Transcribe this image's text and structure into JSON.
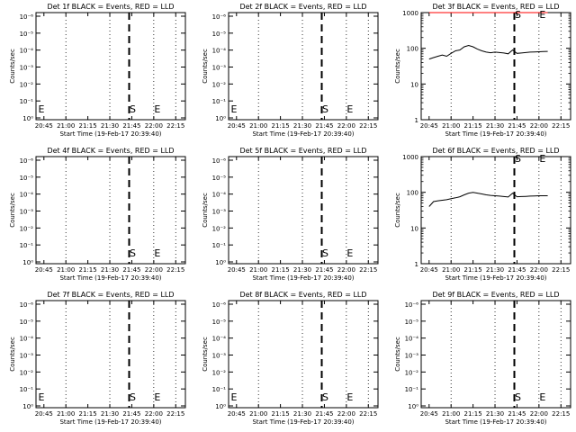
{
  "chart_data": [
    {
      "type": "line",
      "title": "Det 1f BLACK = Events, RED = LLD",
      "xlabel": "Start Time (19-Feb-17 20:39:40)",
      "ylabel": "Counts/sec",
      "x_ticks": [
        "20:45",
        "21:00",
        "21:15",
        "21:30",
        "21:45",
        "22:00",
        "22:15"
      ],
      "y_ticks": [
        "10⁰",
        "10⁻¹",
        "10⁻²",
        "10⁻³",
        "10⁻⁴",
        "10⁻⁵",
        "10⁻⁶"
      ],
      "markers": [
        {
          "label": "E"
        },
        {
          "label": "S"
        },
        {
          "label": "E"
        }
      ],
      "series": []
    },
    {
      "type": "line",
      "title": "Det 2f BLACK = Events, RED = LLD",
      "xlabel": "Start Time (19-Feb-17 20:39:40)",
      "ylabel": "Counts/sec",
      "x_ticks": [
        "20:45",
        "21:00",
        "21:15",
        "21:30",
        "21:45",
        "22:00",
        "22:15"
      ],
      "y_ticks": [
        "10⁰",
        "10⁻¹",
        "10⁻²",
        "10⁻³",
        "10⁻⁴",
        "10⁻⁵",
        "10⁻⁶"
      ],
      "markers": [
        {
          "label": "E"
        },
        {
          "label": "S"
        },
        {
          "label": "E"
        }
      ],
      "series": []
    },
    {
      "type": "line",
      "title": "Det 3f BLACK = Events, RED = LLD",
      "xlabel": "Start Time (19-Feb-17 20:39:40)",
      "ylabel": "Counts/sec",
      "x_ticks": [
        "20:45",
        "21:00",
        "21:15",
        "21:30",
        "21:45",
        "22:00",
        "22:15"
      ],
      "y_ticks": [
        "1",
        "10",
        "100",
        "1000"
      ],
      "markers": [
        {
          "label": "S"
        },
        {
          "label": "E"
        }
      ],
      "series": [
        {
          "color": "#000000",
          "x": [
            20.75,
            20.8,
            20.85,
            20.9,
            20.95,
            21.0,
            21.05,
            21.1,
            21.15,
            21.2,
            21.25,
            21.3,
            21.35,
            21.4,
            21.45,
            21.5,
            21.55,
            21.6,
            21.65,
            21.7,
            21.75,
            21.8,
            21.85,
            21.9,
            21.95,
            22.0,
            22.05,
            22.1
          ],
          "y": [
            50,
            55,
            60,
            65,
            60,
            72,
            85,
            90,
            110,
            120,
            110,
            95,
            85,
            78,
            75,
            78,
            76,
            74,
            70,
            90,
            72,
            74,
            76,
            78,
            79,
            80,
            81,
            82
          ]
        },
        {
          "color": "#ff0000",
          "x": [
            20.75,
            22.1
          ],
          "y": [
            1000,
            1000
          ]
        }
      ]
    },
    {
      "type": "line",
      "title": "Det 4f BLACK = Events, RED = LLD",
      "xlabel": "Start Time (19-Feb-17 20:39:40)",
      "ylabel": "Counts/sec",
      "x_ticks": [
        "20:45",
        "21:00",
        "21:15",
        "21:30",
        "21:45",
        "22:00",
        "22:15"
      ],
      "y_ticks": [
        "10⁰",
        "10⁻¹",
        "10⁻²",
        "10⁻³",
        "10⁻⁴",
        "10⁻⁵",
        "10⁻⁶"
      ],
      "markers": [
        {
          "label": "S"
        },
        {
          "label": "E"
        }
      ],
      "series": []
    },
    {
      "type": "line",
      "title": "Det 5f BLACK = Events, RED = LLD",
      "xlabel": "Start Time (19-Feb-17 20:39:40)",
      "ylabel": "Counts/sec",
      "x_ticks": [
        "20:45",
        "21:00",
        "21:15",
        "21:30",
        "21:45",
        "22:00",
        "22:15"
      ],
      "y_ticks": [
        "10⁰",
        "10⁻¹",
        "10⁻²",
        "10⁻³",
        "10⁻⁴",
        "10⁻⁵",
        "10⁻⁶"
      ],
      "markers": [
        {
          "label": "S"
        },
        {
          "label": "E"
        }
      ],
      "series": []
    },
    {
      "type": "line",
      "title": "Det 6f BLACK = Events, RED = LLD",
      "xlabel": "Start Time (19-Feb-17 20:39:40)",
      "ylabel": "Counts/sec",
      "x_ticks": [
        "20:45",
        "21:00",
        "21:15",
        "21:30",
        "21:45",
        "22:00",
        "22:15"
      ],
      "y_ticks": [
        "1",
        "10",
        "100",
        "1000"
      ],
      "markers": [
        {
          "label": "S"
        },
        {
          "label": "E"
        }
      ],
      "series": [
        {
          "color": "#000000",
          "x": [
            20.75,
            20.8,
            20.85,
            20.9,
            20.95,
            21.0,
            21.05,
            21.1,
            21.15,
            21.2,
            21.25,
            21.3,
            21.35,
            21.4,
            21.45,
            21.5,
            21.55,
            21.6,
            21.65,
            21.7,
            21.75,
            21.8,
            21.85,
            21.9,
            21.95,
            22.0,
            22.05,
            22.1
          ],
          "y": [
            40,
            55,
            58,
            60,
            62,
            66,
            70,
            75,
            85,
            95,
            100,
            95,
            90,
            85,
            82,
            80,
            78,
            76,
            74,
            95,
            75,
            76,
            77,
            78,
            79,
            80,
            80,
            80
          ]
        }
      ]
    },
    {
      "type": "line",
      "title": "Det 7f BLACK = Events, RED = LLD",
      "xlabel": "Start Time (19-Feb-17 20:39:40)",
      "ylabel": "Counts/sec",
      "x_ticks": [
        "20:45",
        "21:00",
        "21:15",
        "21:30",
        "21:45",
        "22:00",
        "22:15"
      ],
      "y_ticks": [
        "10⁰",
        "10⁻¹",
        "10⁻²",
        "10⁻³",
        "10⁻⁴",
        "10⁻⁵",
        "10⁻⁶"
      ],
      "markers": [
        {
          "label": "E"
        },
        {
          "label": "S"
        },
        {
          "label": "E"
        }
      ],
      "series": []
    },
    {
      "type": "line",
      "title": "Det 8f BLACK = Events, RED = LLD",
      "xlabel": "Start Time (19-Feb-17 20:39:40)",
      "ylabel": "Counts/sec",
      "x_ticks": [
        "20:45",
        "21:00",
        "21:15",
        "21:30",
        "21:45",
        "22:00",
        "22:15"
      ],
      "y_ticks": [
        "10⁰",
        "10⁻¹",
        "10⁻²",
        "10⁻³",
        "10⁻⁴",
        "10⁻⁵",
        "10⁻⁶"
      ],
      "markers": [
        {
          "label": "E"
        },
        {
          "label": "S"
        },
        {
          "label": "E"
        }
      ],
      "series": []
    },
    {
      "type": "line",
      "title": "Det 9f BLACK = Events, RED = LLD",
      "xlabel": "Start Time (19-Feb-17 20:39:40)",
      "ylabel": "Counts/sec",
      "x_ticks": [
        "20:45",
        "21:00",
        "21:15",
        "21:30",
        "21:45",
        "22:00",
        "22:15"
      ],
      "y_ticks": [
        "10⁰",
        "10⁻¹",
        "10⁻²",
        "10⁻³",
        "10⁻⁴",
        "10⁻⁵",
        "10⁻⁶"
      ],
      "markers": [
        {
          "label": "S"
        },
        {
          "label": "E"
        }
      ],
      "series": []
    }
  ]
}
